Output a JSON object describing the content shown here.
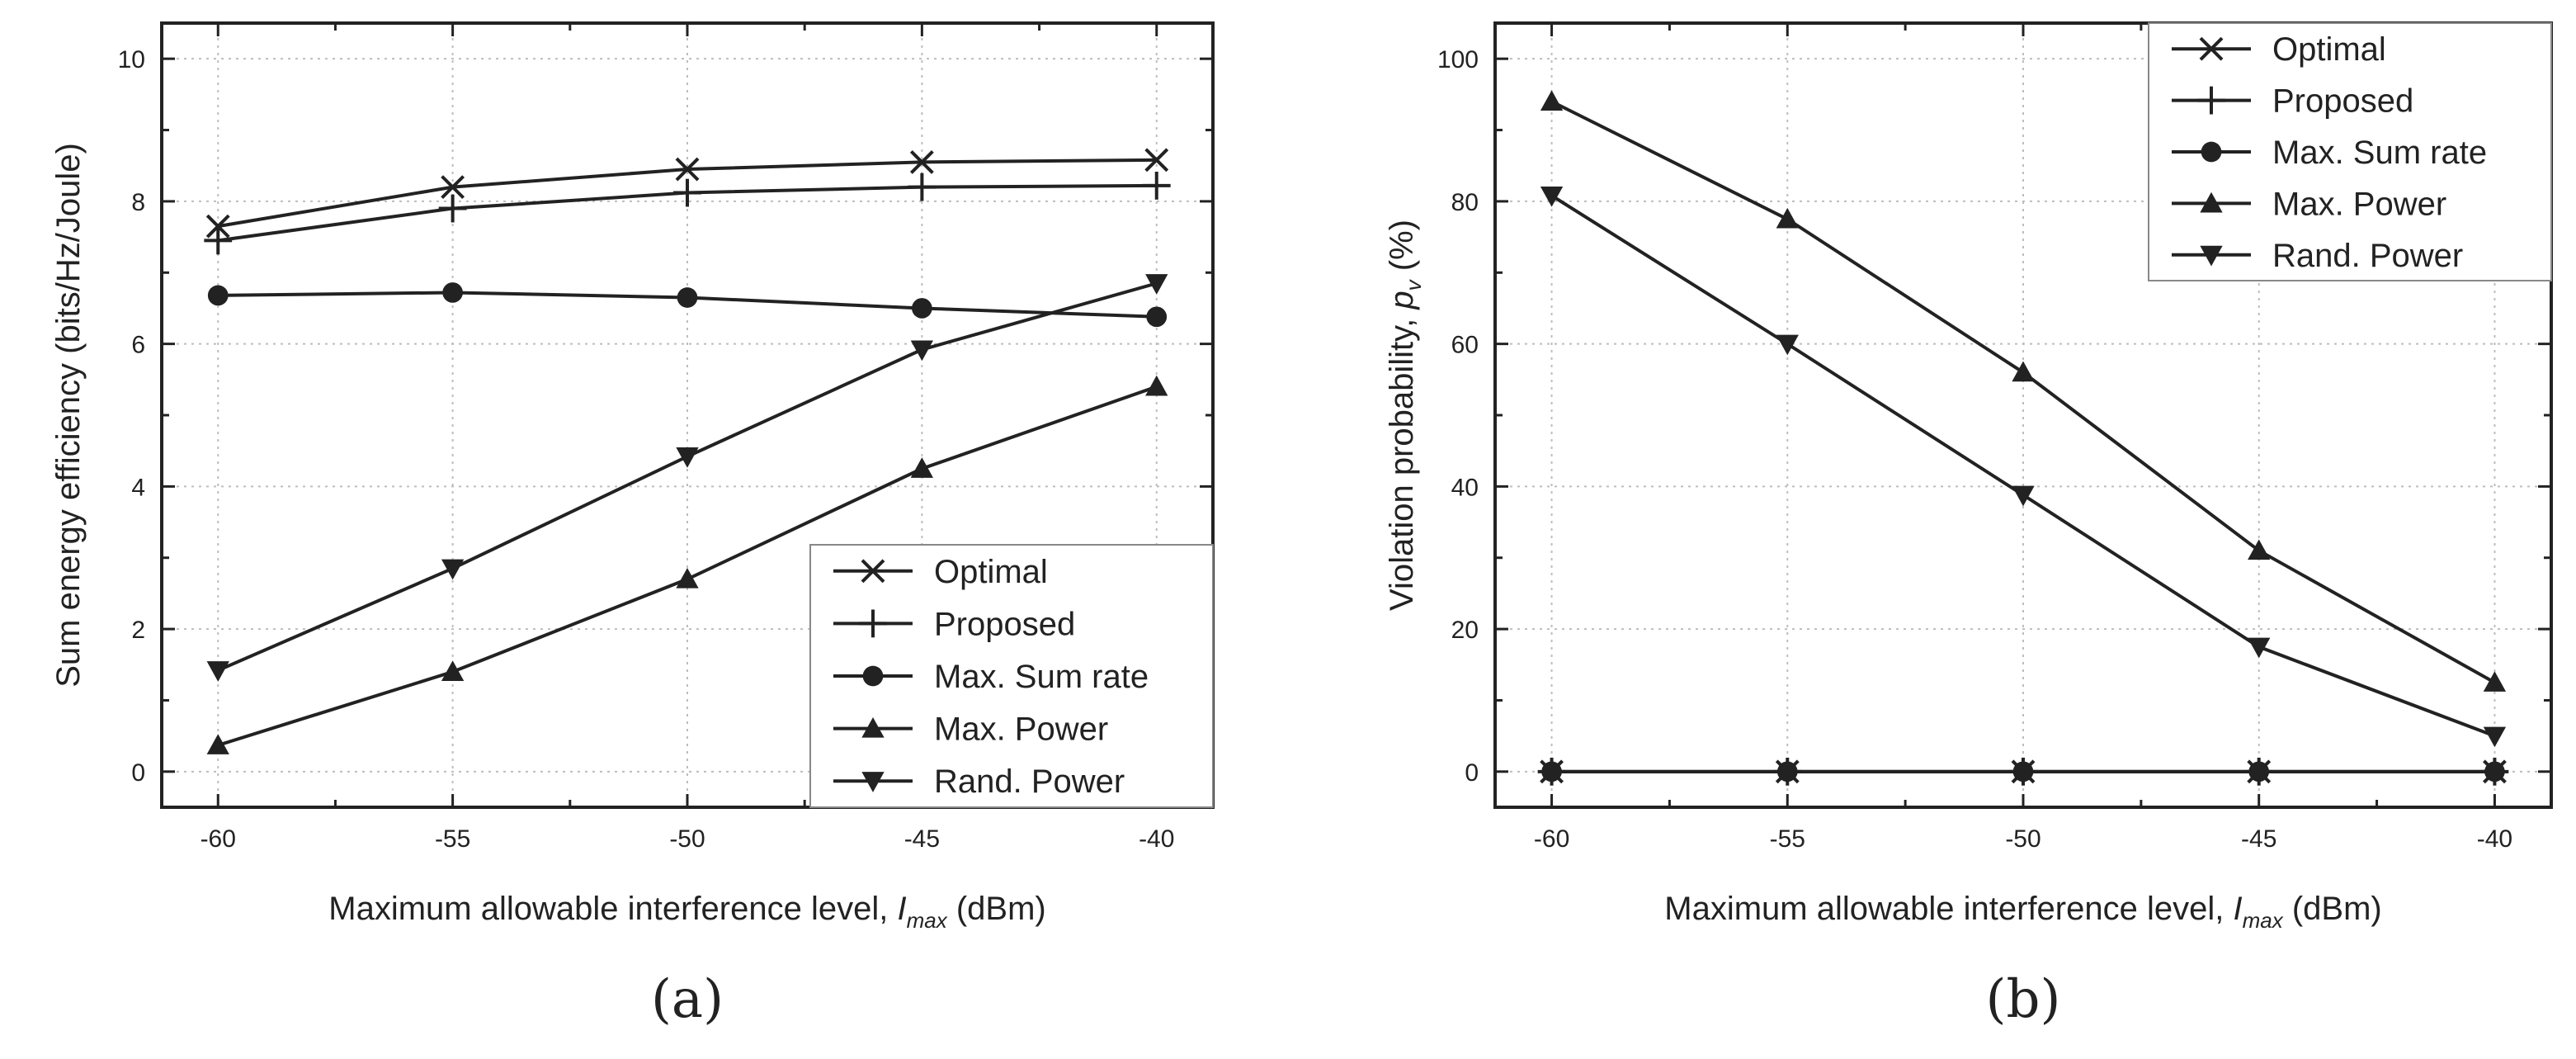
{
  "chart_data": [
    {
      "type": "line",
      "caption": "(a)",
      "xlabel_main": "Maximum allowable interference level, ",
      "xlabel_sym": "I",
      "xlabel_sub": "max",
      "xlabel_unit": " (dBm)",
      "ylabel": "Sum energy efficiency (bits/Hz/Joule)",
      "x": [
        -60,
        -55,
        -50,
        -45,
        -40
      ],
      "xlim": [
        -61.2,
        -38.8
      ],
      "ylim": [
        -0.5,
        10.5
      ],
      "xticks": [
        -60,
        -55,
        -50,
        -45,
        -40
      ],
      "yticks": [
        0,
        2,
        4,
        6,
        8,
        10
      ],
      "grid": true,
      "legend_position": "bottom-right",
      "series": [
        {
          "name": "Optimal",
          "marker": "x",
          "values": [
            7.65,
            8.2,
            8.45,
            8.55,
            8.58
          ]
        },
        {
          "name": "Proposed",
          "marker": "plus",
          "values": [
            7.45,
            7.9,
            8.12,
            8.2,
            8.22
          ]
        },
        {
          "name": "Max. Sum rate",
          "marker": "circle",
          "values": [
            6.68,
            6.72,
            6.65,
            6.5,
            6.38
          ]
        },
        {
          "name": "Max. Power",
          "marker": "triangle-up",
          "values": [
            0.37,
            1.4,
            2.7,
            4.25,
            5.4
          ]
        },
        {
          "name": "Rand. Power",
          "marker": "triangle-down",
          "values": [
            1.42,
            2.85,
            4.42,
            5.92,
            6.85
          ]
        }
      ]
    },
    {
      "type": "line",
      "caption": "(b)",
      "xlabel_main": "Maximum allowable interference level, ",
      "xlabel_sym": "I",
      "xlabel_sub": "max",
      "xlabel_unit": " (dBm)",
      "ylabel_main": "Violation probability, ",
      "ylabel_sym": "p",
      "ylabel_sub": "v",
      "ylabel_unit": " (%)",
      "x": [
        -60,
        -55,
        -50,
        -45,
        -40
      ],
      "xlim": [
        -61.2,
        -38.8
      ],
      "ylim": [
        -5,
        105
      ],
      "xticks": [
        -60,
        -55,
        -50,
        -45,
        -40
      ],
      "yticks": [
        0,
        20,
        40,
        60,
        80,
        100
      ],
      "grid": true,
      "legend_position": "top-right",
      "series": [
        {
          "name": "Optimal",
          "marker": "x",
          "values": [
            0,
            0,
            0,
            0,
            0
          ]
        },
        {
          "name": "Proposed",
          "marker": "plus",
          "values": [
            0,
            0,
            0,
            0,
            0
          ]
        },
        {
          "name": "Max. Sum rate",
          "marker": "circle",
          "values": [
            0,
            0,
            0,
            0,
            0
          ]
        },
        {
          "name": "Max. Power",
          "marker": "triangle-up",
          "values": [
            94,
            77.5,
            56,
            31,
            12.5
          ]
        },
        {
          "name": "Rand. Power",
          "marker": "triangle-down",
          "values": [
            80.8,
            60,
            38.8,
            17.5,
            5
          ]
        }
      ]
    }
  ]
}
